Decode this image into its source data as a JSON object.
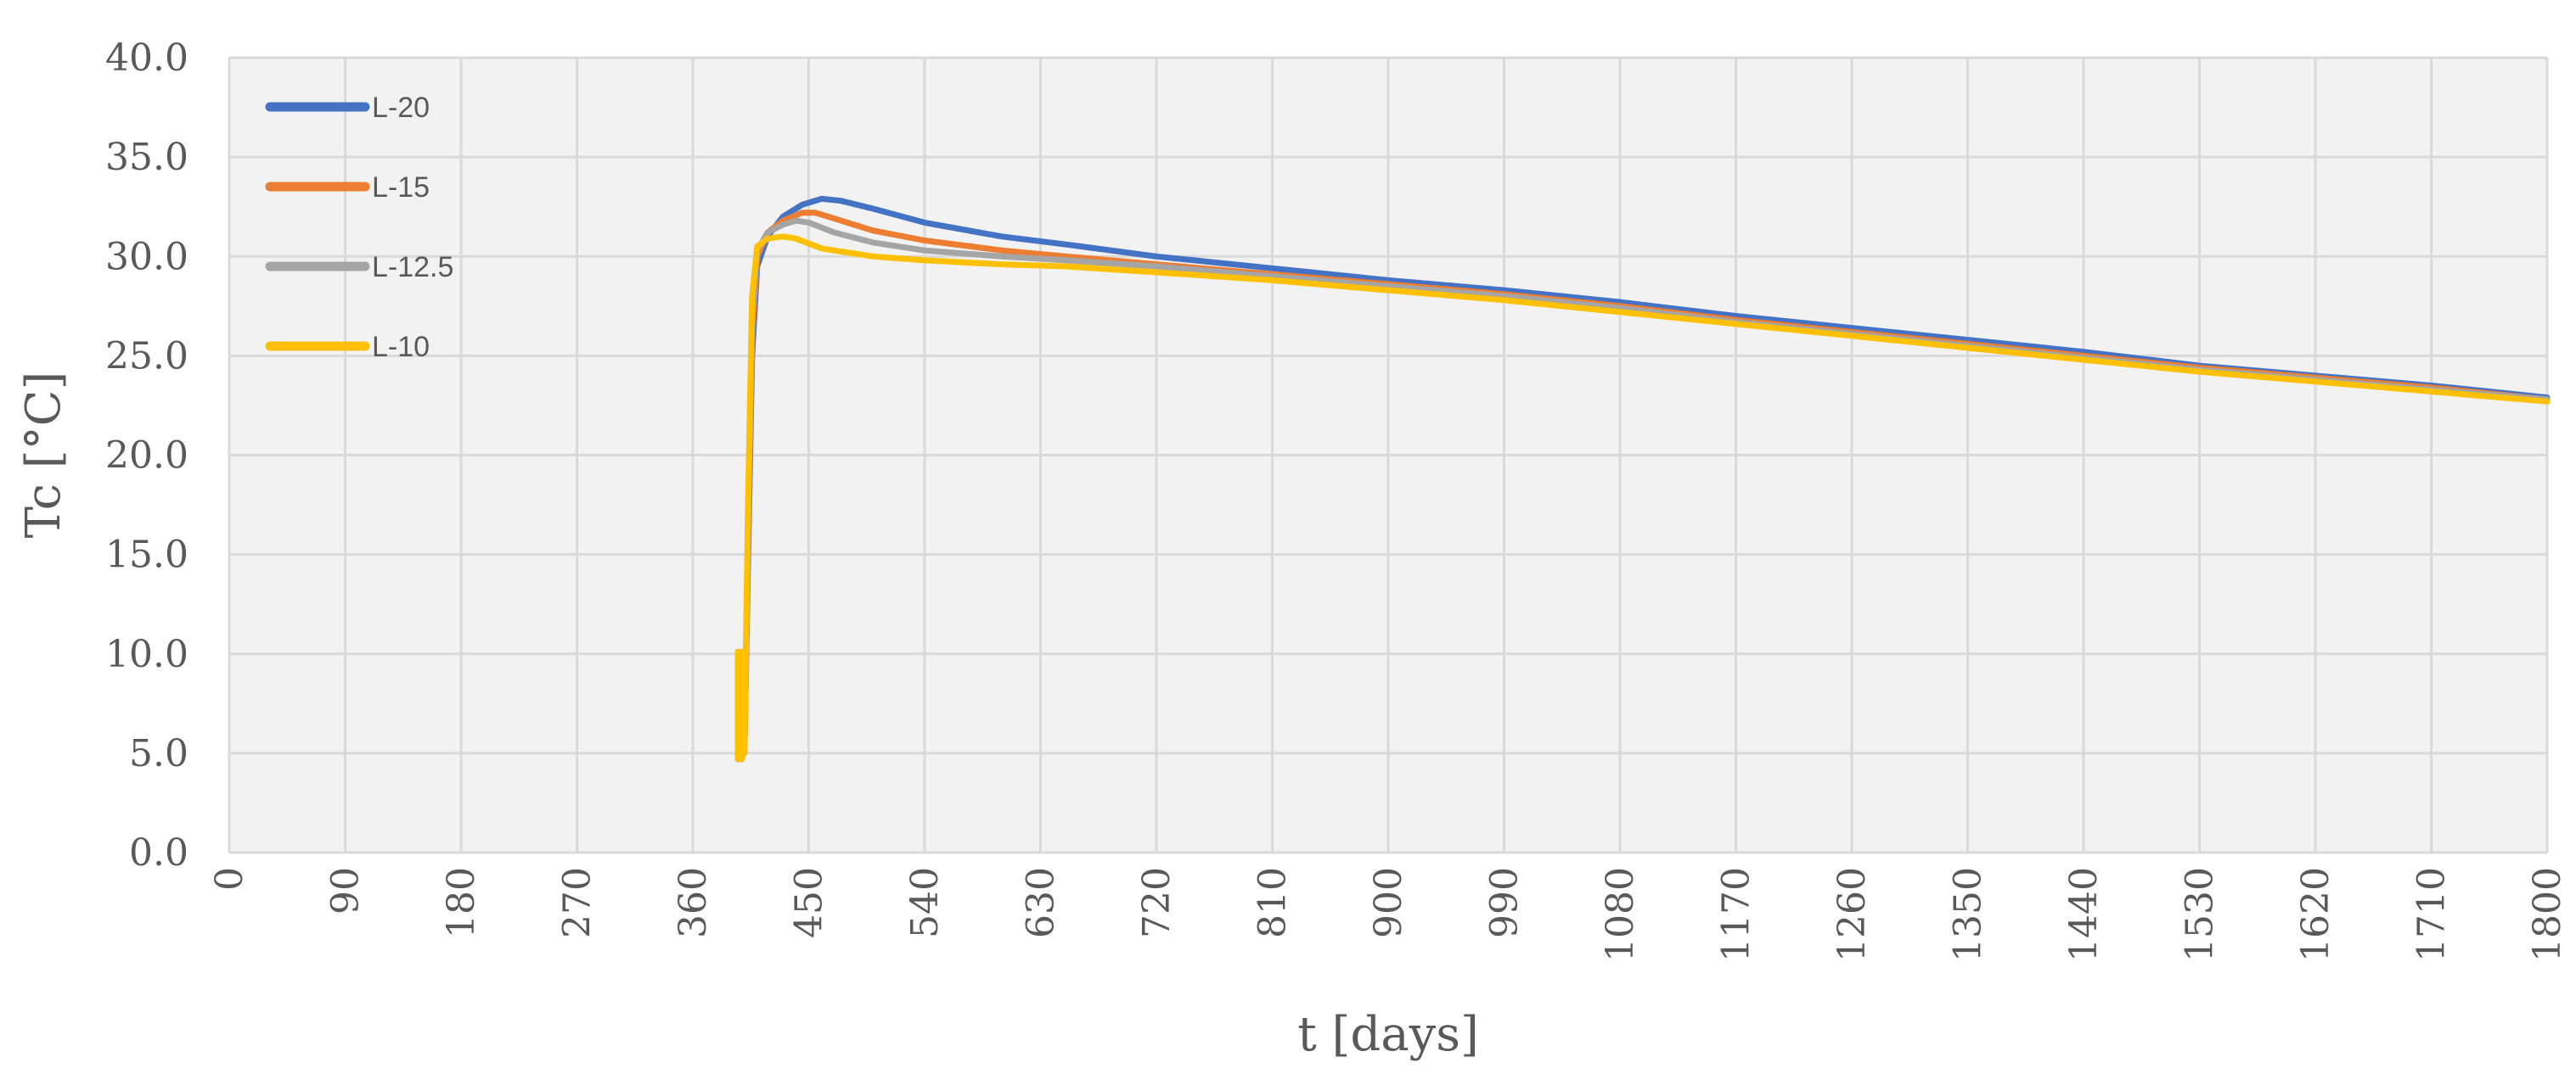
{
  "chart_data": {
    "type": "line",
    "title": "",
    "xlabel": "t [days]",
    "ylabel": "Tc [°C]",
    "xlim": [
      0,
      1800
    ],
    "ylim": [
      0,
      40
    ],
    "x_ticks": [
      0,
      90,
      180,
      270,
      360,
      450,
      540,
      630,
      720,
      810,
      900,
      990,
      1080,
      1170,
      1260,
      1350,
      1440,
      1530,
      1620,
      1710,
      1800
    ],
    "y_ticks": [
      "0.0",
      "5.0",
      "10.0",
      "15.0",
      "20.0",
      "25.0",
      "30.0",
      "35.0",
      "40.0"
    ],
    "grid": true,
    "legend_position": "top-left",
    "series": [
      {
        "name": "L-20",
        "color": "#4472C4",
        "points": [
          [
            395,
            10.1
          ],
          [
            395,
            4.7
          ],
          [
            398,
            4.7
          ],
          [
            398,
            10.1
          ],
          [
            400,
            5.0
          ],
          [
            403,
            15.0
          ],
          [
            406,
            25.0
          ],
          [
            410,
            29.5
          ],
          [
            418,
            31.0
          ],
          [
            430,
            32.0
          ],
          [
            445,
            32.6
          ],
          [
            460,
            32.9
          ],
          [
            475,
            32.8
          ],
          [
            500,
            32.4
          ],
          [
            540,
            31.7
          ],
          [
            600,
            31.0
          ],
          [
            650,
            30.6
          ],
          [
            720,
            30.0
          ],
          [
            810,
            29.4
          ],
          [
            900,
            28.8
          ],
          [
            990,
            28.3
          ],
          [
            1080,
            27.7
          ],
          [
            1170,
            27.0
          ],
          [
            1260,
            26.4
          ],
          [
            1350,
            25.8
          ],
          [
            1440,
            25.2
          ],
          [
            1530,
            24.5
          ],
          [
            1620,
            24.0
          ],
          [
            1710,
            23.5
          ],
          [
            1800,
            22.9
          ]
        ]
      },
      {
        "name": "L-15",
        "color": "#ED7D31",
        "points": [
          [
            395,
            10.1
          ],
          [
            395,
            4.7
          ],
          [
            398,
            4.7
          ],
          [
            398,
            10.1
          ],
          [
            400,
            5.0
          ],
          [
            403,
            16.0
          ],
          [
            406,
            26.0
          ],
          [
            410,
            30.0
          ],
          [
            418,
            31.2
          ],
          [
            430,
            31.8
          ],
          [
            445,
            32.2
          ],
          [
            455,
            32.2
          ],
          [
            470,
            31.9
          ],
          [
            500,
            31.3
          ],
          [
            540,
            30.8
          ],
          [
            600,
            30.3
          ],
          [
            650,
            30.0
          ],
          [
            720,
            29.6
          ],
          [
            810,
            29.1
          ],
          [
            900,
            28.6
          ],
          [
            990,
            28.1
          ],
          [
            1080,
            27.5
          ],
          [
            1170,
            26.8
          ],
          [
            1260,
            26.2
          ],
          [
            1350,
            25.6
          ],
          [
            1440,
            25.0
          ],
          [
            1530,
            24.4
          ],
          [
            1620,
            23.9
          ],
          [
            1710,
            23.4
          ],
          [
            1800,
            22.8
          ]
        ]
      },
      {
        "name": "L-12.5",
        "color": "#A5A5A5",
        "points": [
          [
            395,
            10.1
          ],
          [
            395,
            4.7
          ],
          [
            398,
            4.7
          ],
          [
            398,
            10.1
          ],
          [
            400,
            5.0
          ],
          [
            403,
            17.0
          ],
          [
            406,
            27.0
          ],
          [
            410,
            30.3
          ],
          [
            418,
            31.2
          ],
          [
            430,
            31.6
          ],
          [
            440,
            31.8
          ],
          [
            450,
            31.7
          ],
          [
            470,
            31.2
          ],
          [
            500,
            30.7
          ],
          [
            540,
            30.3
          ],
          [
            600,
            30.0
          ],
          [
            650,
            29.8
          ],
          [
            720,
            29.5
          ],
          [
            810,
            29.0
          ],
          [
            900,
            28.5
          ],
          [
            990,
            28.0
          ],
          [
            1080,
            27.4
          ],
          [
            1170,
            26.7
          ],
          [
            1260,
            26.1
          ],
          [
            1350,
            25.5
          ],
          [
            1440,
            24.9
          ],
          [
            1530,
            24.3
          ],
          [
            1620,
            23.8
          ],
          [
            1710,
            23.3
          ],
          [
            1800,
            22.8
          ]
        ]
      },
      {
        "name": "L-10",
        "color": "#FFC000",
        "points": [
          [
            395,
            10.1
          ],
          [
            395,
            4.7
          ],
          [
            398,
            4.7
          ],
          [
            398,
            10.1
          ],
          [
            400,
            5.0
          ],
          [
            403,
            18.0
          ],
          [
            406,
            28.0
          ],
          [
            410,
            30.5
          ],
          [
            418,
            30.9
          ],
          [
            430,
            31.0
          ],
          [
            440,
            30.9
          ],
          [
            460,
            30.4
          ],
          [
            500,
            30.0
          ],
          [
            540,
            29.8
          ],
          [
            600,
            29.6
          ],
          [
            650,
            29.5
          ],
          [
            720,
            29.2
          ],
          [
            810,
            28.8
          ],
          [
            900,
            28.3
          ],
          [
            990,
            27.8
          ],
          [
            1080,
            27.2
          ],
          [
            1170,
            26.6
          ],
          [
            1260,
            26.0
          ],
          [
            1350,
            25.4
          ],
          [
            1440,
            24.8
          ],
          [
            1530,
            24.2
          ],
          [
            1620,
            23.7
          ],
          [
            1710,
            23.2
          ],
          [
            1800,
            22.7
          ]
        ]
      }
    ]
  }
}
